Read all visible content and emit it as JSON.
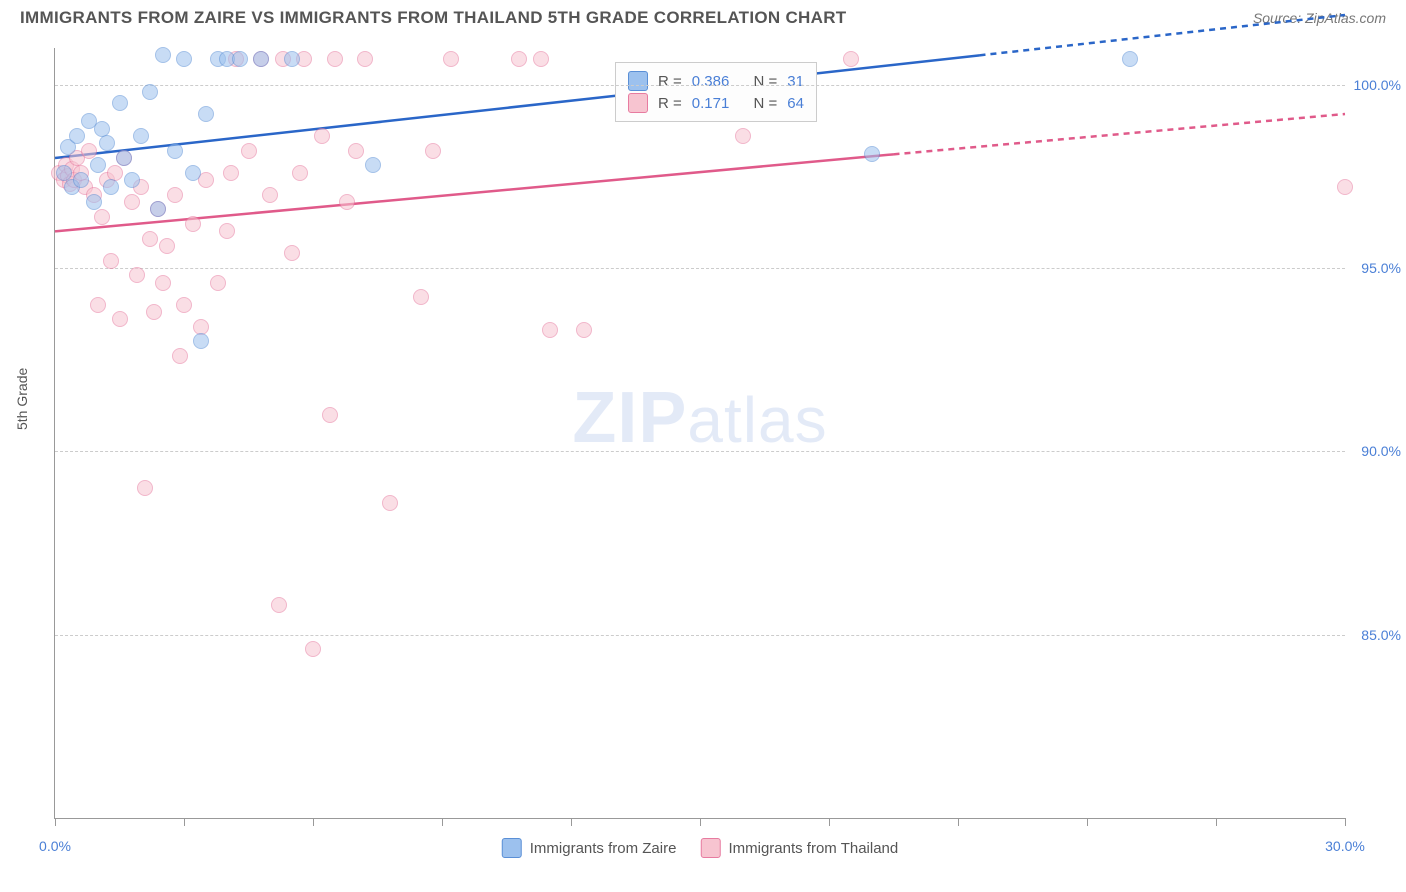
{
  "header": {
    "title": "IMMIGRANTS FROM ZAIRE VS IMMIGRANTS FROM THAILAND 5TH GRADE CORRELATION CHART",
    "source": "Source: ZipAtlas.com"
  },
  "axes": {
    "ylabel": "5th Grade",
    "xlim": [
      0,
      30
    ],
    "ylim": [
      80,
      101
    ],
    "yticks": [
      {
        "value": 85.0,
        "label": "85.0%"
      },
      {
        "value": 90.0,
        "label": "90.0%"
      },
      {
        "value": 95.0,
        "label": "95.0%"
      },
      {
        "value": 100.0,
        "label": "100.0%"
      }
    ],
    "xtick_label_left": "0.0%",
    "xtick_label_right": "30.0%",
    "xtick_positions": [
      0,
      3,
      6,
      9,
      12,
      15,
      18,
      21,
      24,
      27,
      30
    ]
  },
  "series": {
    "zaire": {
      "label": "Immigrants from Zaire",
      "fill": "#9cc1ee",
      "stroke": "#5a8fd6",
      "line_color": "#2a66c8",
      "r_label": "R =",
      "r_value": "0.386",
      "n_label": "N =",
      "n_value": "31",
      "trend": {
        "x1": 0,
        "y1": 98.0,
        "x2": 21.5,
        "y2": 100.8,
        "x2_dash": 30,
        "y2_dash": 101.9
      },
      "points": [
        [
          0.2,
          97.6
        ],
        [
          0.3,
          98.3
        ],
        [
          0.4,
          97.2
        ],
        [
          0.5,
          98.6
        ],
        [
          0.6,
          97.4
        ],
        [
          0.8,
          99.0
        ],
        [
          0.9,
          96.8
        ],
        [
          1.0,
          97.8
        ],
        [
          1.1,
          98.8
        ],
        [
          1.2,
          98.4
        ],
        [
          1.3,
          97.2
        ],
        [
          1.5,
          99.5
        ],
        [
          1.6,
          98.0
        ],
        [
          1.8,
          97.4
        ],
        [
          2.0,
          98.6
        ],
        [
          2.2,
          99.8
        ],
        [
          2.4,
          96.6
        ],
        [
          2.5,
          100.8
        ],
        [
          2.8,
          98.2
        ],
        [
          3.0,
          100.7
        ],
        [
          3.2,
          97.6
        ],
        [
          3.4,
          93.0
        ],
        [
          3.5,
          99.2
        ],
        [
          3.8,
          100.7
        ],
        [
          4.0,
          100.7
        ],
        [
          4.3,
          100.7
        ],
        [
          4.8,
          100.7
        ],
        [
          5.5,
          100.7
        ],
        [
          7.4,
          97.8
        ],
        [
          19.0,
          98.1
        ],
        [
          25.0,
          100.7
        ]
      ]
    },
    "thailand": {
      "label": "Immigrants from Thailand",
      "fill": "#f7c4d0",
      "stroke": "#e77ba0",
      "line_color": "#e05a8a",
      "r_label": "R =",
      "r_value": "0.171",
      "n_label": "N =",
      "n_value": "64",
      "trend": {
        "x1": 0,
        "y1": 96.0,
        "x2": 19.5,
        "y2": 98.1,
        "x2_dash": 30,
        "y2_dash": 99.2
      },
      "points": [
        [
          0.1,
          97.6
        ],
        [
          0.2,
          97.4
        ],
        [
          0.25,
          97.8
        ],
        [
          0.3,
          97.5
        ],
        [
          0.35,
          97.3
        ],
        [
          0.4,
          97.7
        ],
        [
          0.45,
          97.4
        ],
        [
          0.5,
          98.0
        ],
        [
          0.6,
          97.6
        ],
        [
          0.7,
          97.2
        ],
        [
          0.8,
          98.2
        ],
        [
          0.9,
          97.0
        ],
        [
          1.0,
          94.0
        ],
        [
          1.1,
          96.4
        ],
        [
          1.2,
          97.4
        ],
        [
          1.3,
          95.2
        ],
        [
          1.4,
          97.6
        ],
        [
          1.5,
          93.6
        ],
        [
          1.6,
          98.0
        ],
        [
          1.8,
          96.8
        ],
        [
          1.9,
          94.8
        ],
        [
          2.0,
          97.2
        ],
        [
          2.1,
          89.0
        ],
        [
          2.2,
          95.8
        ],
        [
          2.3,
          93.8
        ],
        [
          2.4,
          96.6
        ],
        [
          2.5,
          94.6
        ],
        [
          2.6,
          95.6
        ],
        [
          2.8,
          97.0
        ],
        [
          2.9,
          92.6
        ],
        [
          3.0,
          94.0
        ],
        [
          3.2,
          96.2
        ],
        [
          3.4,
          93.4
        ],
        [
          3.5,
          97.4
        ],
        [
          3.8,
          94.6
        ],
        [
          4.0,
          96.0
        ],
        [
          4.1,
          97.6
        ],
        [
          4.2,
          100.7
        ],
        [
          4.5,
          98.2
        ],
        [
          4.8,
          100.7
        ],
        [
          5.0,
          97.0
        ],
        [
          5.2,
          85.8
        ],
        [
          5.3,
          100.7
        ],
        [
          5.5,
          95.4
        ],
        [
          5.7,
          97.6
        ],
        [
          5.8,
          100.7
        ],
        [
          6.0,
          84.6
        ],
        [
          6.2,
          98.6
        ],
        [
          6.4,
          91.0
        ],
        [
          6.5,
          100.7
        ],
        [
          6.8,
          96.8
        ],
        [
          7.0,
          98.2
        ],
        [
          7.2,
          100.7
        ],
        [
          7.8,
          88.6
        ],
        [
          8.5,
          94.2
        ],
        [
          8.8,
          98.2
        ],
        [
          9.2,
          100.7
        ],
        [
          10.8,
          100.7
        ],
        [
          11.3,
          100.7
        ],
        [
          11.5,
          93.3
        ],
        [
          12.3,
          93.3
        ],
        [
          16.0,
          98.6
        ],
        [
          18.5,
          100.7
        ],
        [
          30.0,
          97.2
        ]
      ]
    }
  },
  "watermark": {
    "bold": "ZIP",
    "rest": "atlas"
  },
  "style": {
    "marker_radius": 8,
    "marker_opacity": 0.55,
    "marker_stroke_width": 1.5,
    "label_color": "#4a7fd6",
    "grid_color": "#cccccc",
    "background": "#ffffff"
  }
}
